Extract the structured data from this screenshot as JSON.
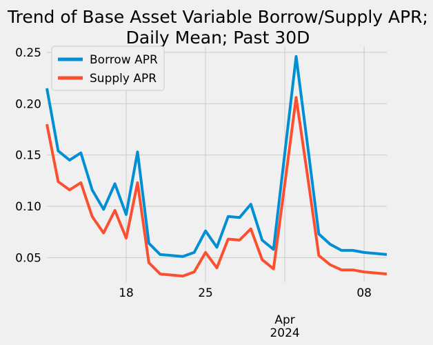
{
  "chart_data": {
    "type": "line",
    "title": "Trend of Base Asset Variable Borrow/Supply APR;",
    "subtitle": "Daily Mean; Past 30D",
    "xlabel": "",
    "ylabel": "",
    "x": [
      "2024-03-11",
      "2024-03-12",
      "2024-03-13",
      "2024-03-14",
      "2024-03-15",
      "2024-03-16",
      "2024-03-17",
      "2024-03-18",
      "2024-03-19",
      "2024-03-20",
      "2024-03-21",
      "2024-03-22",
      "2024-03-23",
      "2024-03-24",
      "2024-03-25",
      "2024-03-26",
      "2024-03-27",
      "2024-03-28",
      "2024-03-29",
      "2024-03-30",
      "2024-03-31",
      "2024-04-01",
      "2024-04-02",
      "2024-04-03",
      "2024-04-04",
      "2024-04-05",
      "2024-04-06",
      "2024-04-07",
      "2024-04-08",
      "2024-04-09",
      "2024-04-10"
    ],
    "series": [
      {
        "name": "Borrow APR",
        "color": "#008fd5",
        "values": [
          0.215,
          0.154,
          0.145,
          0.152,
          0.116,
          0.097,
          0.122,
          0.092,
          0.153,
          0.064,
          0.053,
          0.052,
          0.051,
          0.055,
          0.076,
          0.06,
          0.09,
          0.089,
          0.102,
          0.067,
          0.058,
          0.152,
          0.246,
          0.16,
          0.073,
          0.063,
          0.057,
          0.057,
          0.055,
          0.054,
          0.053
        ]
      },
      {
        "name": "Supply APR",
        "color": "#fc4f30",
        "values": [
          0.18,
          0.124,
          0.116,
          0.123,
          0.09,
          0.074,
          0.096,
          0.069,
          0.123,
          0.045,
          0.034,
          0.033,
          0.032,
          0.036,
          0.055,
          0.04,
          0.068,
          0.067,
          0.078,
          0.048,
          0.039,
          0.122,
          0.206,
          0.13,
          0.052,
          0.043,
          0.038,
          0.038,
          0.036,
          0.035,
          0.034
        ]
      }
    ],
    "ylim": [
      0.026,
      0.256
    ],
    "yticks": [
      0.05,
      0.1,
      0.15,
      0.2,
      0.25
    ],
    "ytick_labels": [
      "0.05",
      "0.10",
      "0.15",
      "0.20",
      "0.25"
    ],
    "xticks_minor": [
      {
        "date": "2024-03-18",
        "label": "18"
      },
      {
        "date": "2024-03-25",
        "label": "25"
      },
      {
        "date": "2024-04-08",
        "label": "08"
      }
    ],
    "xtick_major": {
      "date": "2024-04-01",
      "label_line1": "Apr",
      "label_line2": "2024"
    },
    "grid": true,
    "legend_position": "upper-left"
  }
}
